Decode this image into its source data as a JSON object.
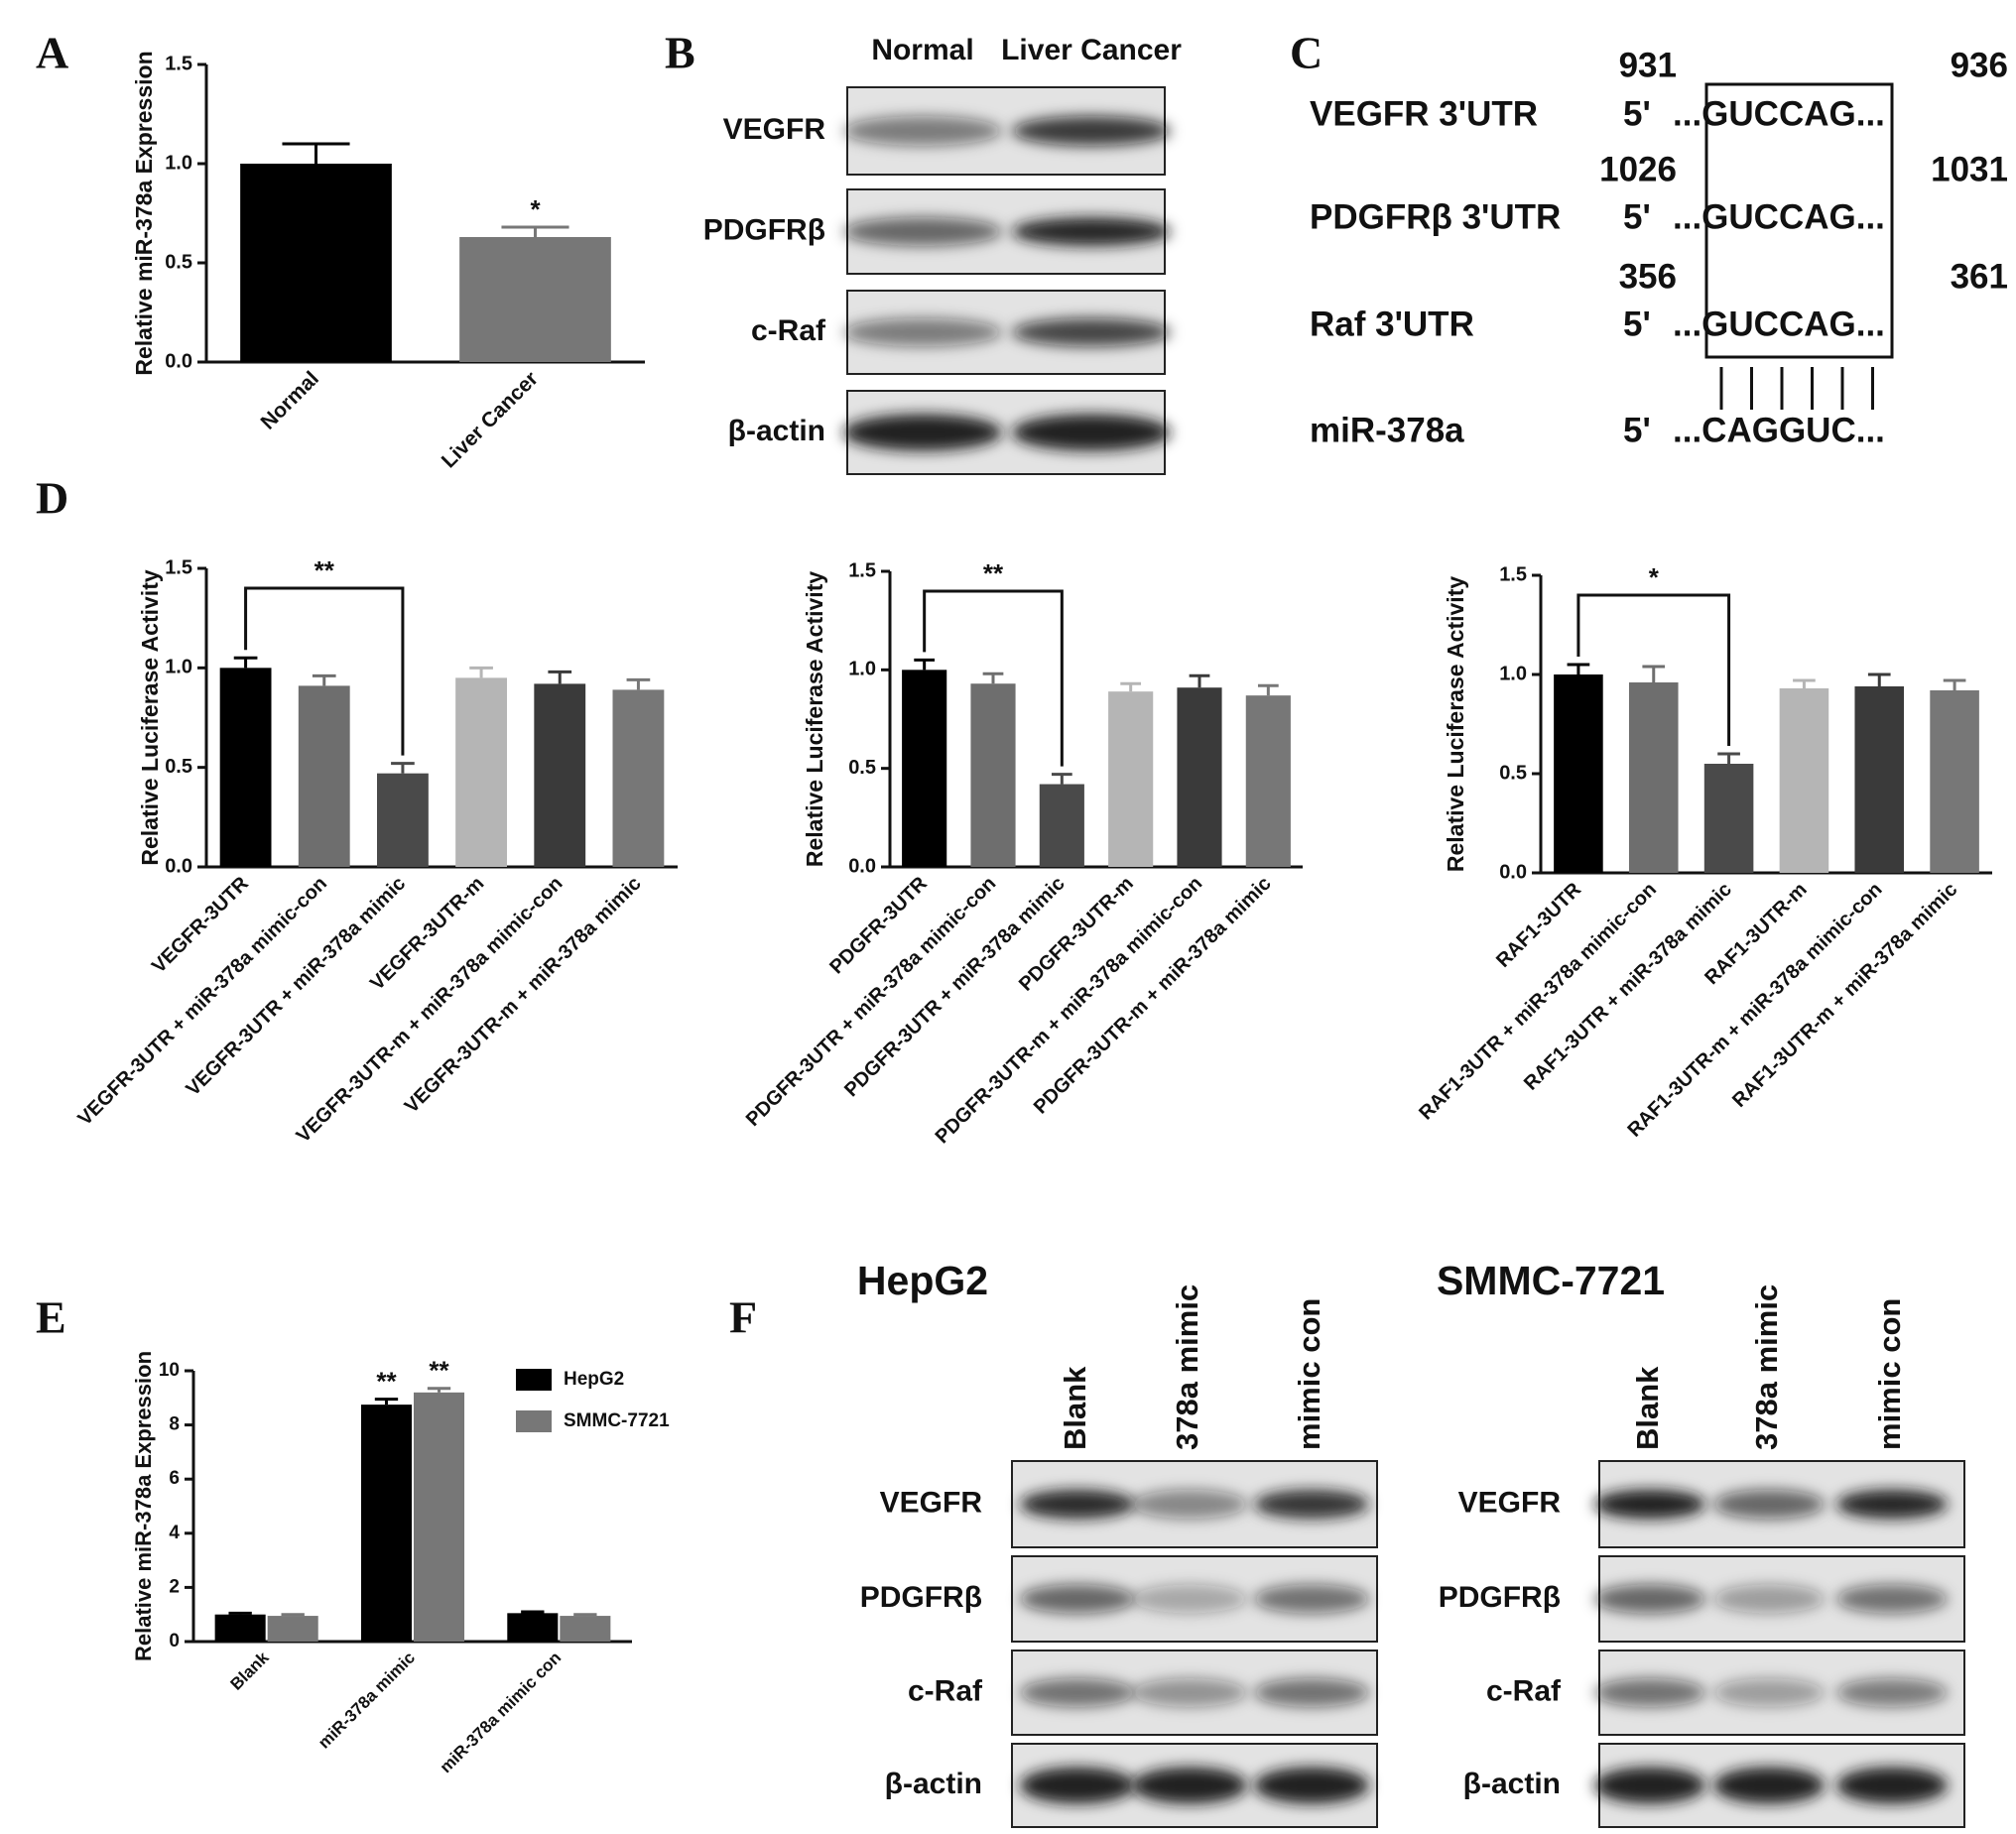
{
  "panel_labels": [
    "A",
    "B",
    "C",
    "D",
    "E",
    "F"
  ],
  "chart_data": [
    {
      "type": "bar",
      "ylabel": "Relative miR-378a Expression",
      "categories": [
        "Normal",
        "Liver Cancer"
      ],
      "values": [
        1.0,
        0.63
      ],
      "errors": [
        0.1,
        0.05
      ],
      "colors": [
        "#000000",
        "#777777"
      ],
      "annotations": [
        null,
        "*"
      ],
      "ylim": [
        0,
        1.5
      ],
      "yticks": [
        {
          "value": 0,
          "label": "0.0"
        },
        {
          "value": 0.5,
          "label": "0.5"
        },
        {
          "value": 1,
          "label": "1.0"
        },
        {
          "value": 1.5,
          "label": "1.5"
        }
      ]
    },
    {
      "type": "bar",
      "ylabel": "Relative Luciferase Activity",
      "categories": [
        "VEGFR-3UTR",
        "VEGFR-3UTR + miR-378a mimic-con",
        "VEGFR-3UTR + miR-378a mimic",
        "VEGFR-3UTR-m",
        "VEGFR-3UTR-m + miR-378a mimic-con",
        "VEGFR-3UTR-m + miR-378a mimic"
      ],
      "values": [
        1.0,
        0.91,
        0.47,
        0.95,
        0.92,
        0.89
      ],
      "errors": [
        0.05,
        0.05,
        0.05,
        0.05,
        0.06,
        0.05
      ],
      "colors": [
        "#000000",
        "#6e6e6e",
        "#4a4a4a",
        "#b5b5b5",
        "#3a3a3a",
        "#777777"
      ],
      "significance": "**",
      "ylim": [
        0,
        1.5
      ],
      "yticks": [
        {
          "value": 0,
          "label": "0.0"
        },
        {
          "value": 0.5,
          "label": "0.5"
        },
        {
          "value": 1,
          "label": "1.0"
        },
        {
          "value": 1.5,
          "label": "1.5"
        }
      ]
    },
    {
      "type": "bar",
      "ylabel": "Relative Luciferase Activity",
      "categories": [
        "PDGFR-3UTR",
        "PDGFR-3UTR + miR-378a mimic-con",
        "PDGFR-3UTR + miR-378a mimic",
        "PDGFR-3UTR-m",
        "PDGFR-3UTR-m + miR-378a mimic-con",
        "PDGFR-3UTR-m + miR-378a mimic"
      ],
      "values": [
        1.0,
        0.93,
        0.42,
        0.89,
        0.91,
        0.87
      ],
      "errors": [
        0.05,
        0.05,
        0.05,
        0.04,
        0.06,
        0.05
      ],
      "colors": [
        "#000000",
        "#6e6e6e",
        "#4a4a4a",
        "#b5b5b5",
        "#3a3a3a",
        "#777777"
      ],
      "significance": "**",
      "ylim": [
        0,
        1.5
      ],
      "yticks": [
        {
          "value": 0,
          "label": "0.0"
        },
        {
          "value": 0.5,
          "label": "0.5"
        },
        {
          "value": 1,
          "label": "1.0"
        },
        {
          "value": 1.5,
          "label": "1.5"
        }
      ]
    },
    {
      "type": "bar",
      "ylabel": "Relative Luciferase Activity",
      "categories": [
        "RAF1-3UTR",
        "RAF1-3UTR + miR-378a mimic-con",
        "RAF1-3UTR + miR-378a mimic",
        "RAF1-3UTR-m",
        "RAF1-3UTR-m + miR-378a mimic-con",
        "RAF1-3UTR-m + miR-378a mimic"
      ],
      "values": [
        1.0,
        0.96,
        0.55,
        0.93,
        0.94,
        0.92
      ],
      "errors": [
        0.05,
        0.08,
        0.05,
        0.04,
        0.06,
        0.05
      ],
      "colors": [
        "#000000",
        "#6e6e6e",
        "#4a4a4a",
        "#b5b5b5",
        "#3a3a3a",
        "#777777"
      ],
      "significance": "*",
      "ylim": [
        0,
        1.5
      ],
      "yticks": [
        {
          "value": 0,
          "label": "0.0"
        },
        {
          "value": 0.5,
          "label": "0.5"
        },
        {
          "value": 1,
          "label": "1.0"
        },
        {
          "value": 1.5,
          "label": "1.5"
        }
      ]
    },
    {
      "type": "bar",
      "ylabel": "Relative miR-378a Expression",
      "categories": [
        "Blank",
        "miR-378a mimic",
        "miR-378a mimic con"
      ],
      "series": [
        {
          "name": "HepG2",
          "color": "#000000",
          "values": [
            1.0,
            8.75,
            1.05
          ],
          "errors": [
            0.05,
            0.2,
            0.05
          ],
          "annotations": [
            null,
            "**",
            null
          ]
        },
        {
          "name": "SMMC-7721",
          "color": "#777777",
          "values": [
            0.95,
            9.2,
            0.95
          ],
          "errors": [
            0.05,
            0.15,
            0.05
          ],
          "annotations": [
            null,
            "**",
            null
          ]
        }
      ],
      "ylim": [
        0,
        10
      ],
      "yticks": [
        0,
        2,
        4,
        6,
        8,
        10
      ],
      "legend": "upper right"
    }
  ],
  "blot_b": {
    "columns": [
      "Normal",
      "Liver Cancer"
    ],
    "rows": [
      "VEGFR",
      "PDGFRβ",
      "c-Raf",
      "β-actin"
    ]
  },
  "sequence_alignment": {
    "rows": [
      {
        "gene": "VEGFR 3'UTR",
        "prime": "5'",
        "sequence": "...GUCCAG...",
        "start": 931,
        "end": 936
      },
      {
        "gene": "PDGFRβ 3'UTR",
        "prime": "5'",
        "sequence": "...GUCCAG...",
        "start": 1026,
        "end": 1031
      },
      {
        "gene": "Raf 3'UTR",
        "prime": "5'",
        "sequence": "...GUCCAG...",
        "start": 356,
        "end": 361
      }
    ],
    "mirna": {
      "name": "miR-378a",
      "prime": "5'",
      "sequence": "...CAGGUC..."
    }
  },
  "blot_f": [
    {
      "title": "HepG2",
      "columns": [
        "Blank",
        "378a mimic",
        "mimic con"
      ],
      "rows": [
        "VEGFR",
        "PDGFRβ",
        "c-Raf",
        "β-actin"
      ]
    },
    {
      "title": "SMMC-7721",
      "columns": [
        "Blank",
        "378a mimic",
        "mimic con"
      ],
      "rows": [
        "VEGFR",
        "PDGFRβ",
        "c-Raf",
        "β-actin"
      ]
    }
  ]
}
